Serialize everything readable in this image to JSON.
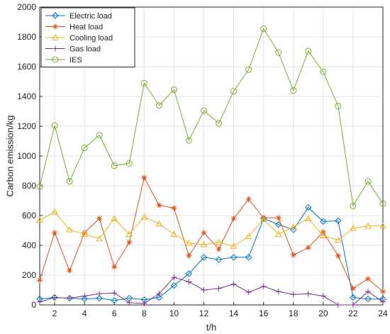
{
  "chart_data": {
    "type": "line",
    "title": "",
    "xlabel": "t/h",
    "ylabel": "Carbon emission/kg",
    "xlim": [
      1,
      24
    ],
    "ylim": [
      0,
      2000
    ],
    "x_ticks": [
      2,
      4,
      6,
      8,
      10,
      12,
      14,
      16,
      18,
      20,
      22,
      24
    ],
    "y_ticks": [
      0,
      200,
      400,
      600,
      800,
      1000,
      1200,
      1400,
      1600,
      1800,
      2000
    ],
    "grid": true,
    "legend_position": "top-left",
    "x": [
      1,
      2,
      3,
      4,
      5,
      6,
      7,
      8,
      9,
      10,
      11,
      12,
      13,
      14,
      15,
      16,
      17,
      18,
      19,
      20,
      21,
      22,
      23,
      24
    ],
    "series": [
      {
        "name": "Electric load",
        "color": "#0072BD",
        "marker": "diamond",
        "values": [
          40,
          50,
          45,
          40,
          45,
          30,
          45,
          35,
          50,
          130,
          210,
          320,
          305,
          320,
          320,
          580,
          540,
          505,
          655,
          560,
          565,
          50,
          40,
          40
        ]
      },
      {
        "name": "Heat load",
        "color": "#D95319",
        "marker": "asterisk",
        "values": [
          165,
          485,
          230,
          485,
          580,
          255,
          420,
          855,
          670,
          650,
          330,
          485,
          375,
          580,
          710,
          585,
          585,
          335,
          385,
          490,
          330,
          110,
          175,
          90
        ]
      },
      {
        "name": "Cooling load",
        "color": "#EDB120",
        "marker": "triangle",
        "values": [
          570,
          625,
          505,
          475,
          445,
          580,
          475,
          590,
          545,
          475,
          415,
          405,
          420,
          395,
          460,
          575,
          475,
          525,
          580,
          465,
          435,
          515,
          530,
          530
        ]
      },
      {
        "name": "Gas load",
        "color": "#7E2F8E",
        "marker": "plus",
        "values": [
          20,
          50,
          45,
          60,
          75,
          80,
          15,
          10,
          75,
          185,
          155,
          100,
          110,
          140,
          85,
          125,
          90,
          70,
          75,
          60,
          0,
          0,
          90,
          20
        ]
      },
      {
        "name": "IES",
        "color": "#77AC30",
        "marker": "circle",
        "values": [
          795,
          1205,
          830,
          1055,
          1140,
          935,
          950,
          1490,
          1340,
          1445,
          1105,
          1305,
          1220,
          1435,
          1580,
          1855,
          1695,
          1440,
          1705,
          1565,
          1335,
          665,
          830,
          680
        ]
      }
    ]
  }
}
